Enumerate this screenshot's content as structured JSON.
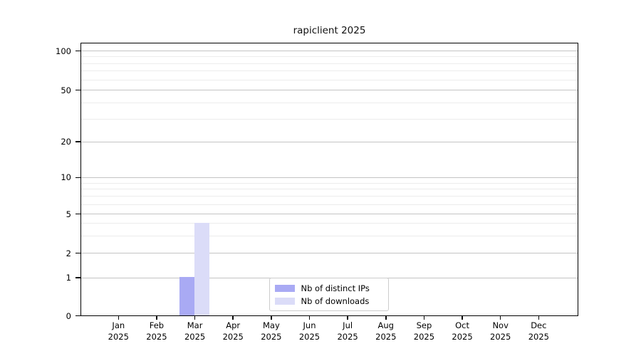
{
  "page": {
    "background": "#ffffff"
  },
  "chart_data": {
    "type": "bar",
    "title": "rapiclient 2025",
    "x_categories": [
      "Jan",
      "Feb",
      "Mar",
      "Apr",
      "May",
      "Jun",
      "Jul",
      "Aug",
      "Sep",
      "Oct",
      "Nov",
      "Dec"
    ],
    "x_year": "2025",
    "series": [
      {
        "name": "Nb of distinct IPs",
        "color": "#a9aaf4",
        "values": [
          0,
          0,
          1,
          0,
          0,
          0,
          0,
          0,
          0,
          0,
          0,
          0
        ]
      },
      {
        "name": "Nb of downloads",
        "color": "#dbdcf8",
        "values": [
          0,
          0,
          4,
          0,
          0,
          0,
          0,
          0,
          0,
          0,
          0,
          0
        ]
      }
    ],
    "y_axis": {
      "scale": "log-like",
      "major_tick_labels": [
        "0",
        "1",
        "2",
        "5",
        "10",
        "20",
        "50",
        "100"
      ],
      "major_tick_values": [
        0,
        1,
        2,
        5,
        10,
        20,
        50,
        100
      ],
      "minor_tick_values": [
        3,
        4,
        6,
        7,
        8,
        9,
        30,
        40,
        60,
        70,
        80,
        90
      ],
      "range": [
        0,
        100
      ]
    },
    "legend": {
      "position": "inside-bottom-center"
    },
    "grid": true
  },
  "colors": {
    "major_grid": "#c4c4c4",
    "minor_grid": "#ececec",
    "axis": "#000000",
    "legend_border": "#cccccc"
  }
}
